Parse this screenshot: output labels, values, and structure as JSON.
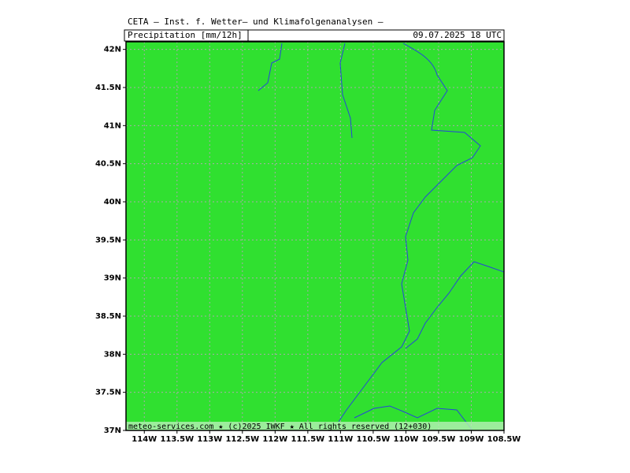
{
  "header": {
    "title": "CETA — Inst. f. Wetter— und Klimafolgenanalysen —",
    "subtitle": "Precipitation [mm/12h]",
    "date": "09.07.2025  18 UTC"
  },
  "map": {
    "lon_lim": [
      -114.28,
      -108.5
    ],
    "lat_lim": [
      37,
      42.1
    ],
    "lon_ticks": [
      {
        "value": -114,
        "label": "114W"
      },
      {
        "value": -113.5,
        "label": "113.5W"
      },
      {
        "value": -113,
        "label": "113W"
      },
      {
        "value": -112.5,
        "label": "112.5W"
      },
      {
        "value": -112,
        "label": "112W"
      },
      {
        "value": -111.5,
        "label": "111.5W"
      },
      {
        "value": -111,
        "label": "111W"
      },
      {
        "value": -110.5,
        "label": "110.5W"
      },
      {
        "value": -110,
        "label": "110W"
      },
      {
        "value": -109.5,
        "label": "109.5W"
      },
      {
        "value": -109,
        "label": "109W"
      },
      {
        "value": -108.5,
        "label": "108.5W"
      }
    ],
    "lat_ticks": [
      {
        "value": 37,
        "label": "37N"
      },
      {
        "value": 37.5,
        "label": "37.5N"
      },
      {
        "value": 38,
        "label": "38N"
      },
      {
        "value": 38.5,
        "label": "38.5N"
      },
      {
        "value": 39,
        "label": "39N"
      },
      {
        "value": 39.5,
        "label": "39.5N"
      },
      {
        "value": 40,
        "label": "40N"
      },
      {
        "value": 40.5,
        "label": "40.5N"
      },
      {
        "value": 41,
        "label": "41N"
      },
      {
        "value": 41.5,
        "label": "41.5N"
      },
      {
        "value": 42,
        "label": "42N"
      }
    ]
  },
  "footer": "meteo-services.com ★ (c)2025 IWKF ★ All rights reserved (12+030)"
}
